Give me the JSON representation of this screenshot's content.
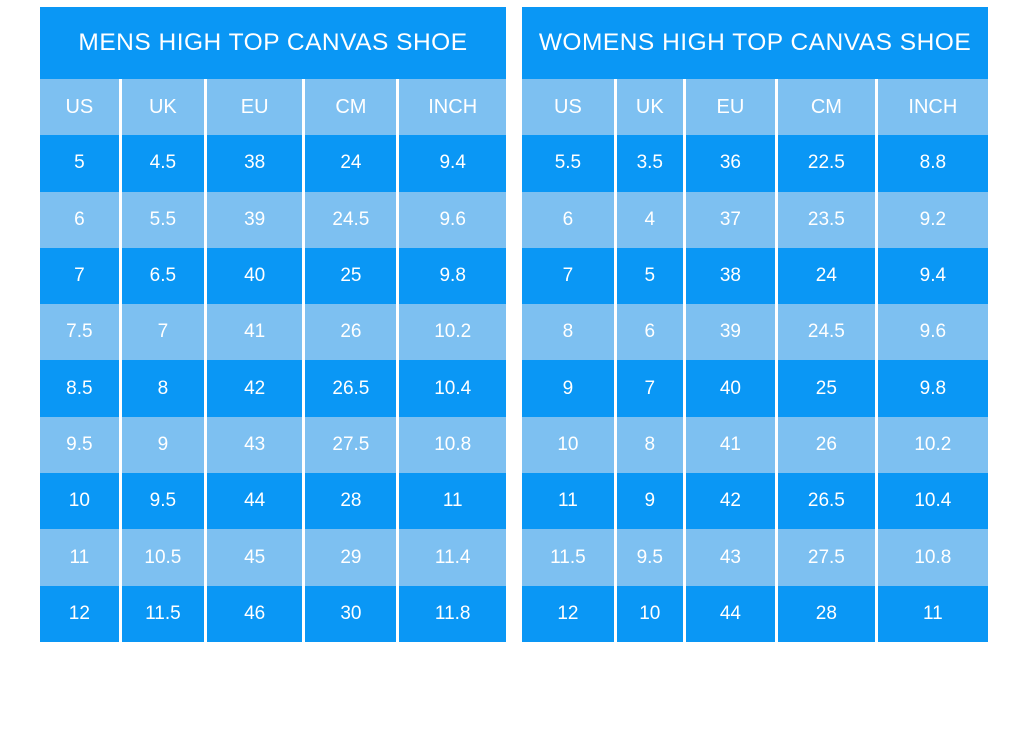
{
  "chart_data": [
    {
      "type": "table",
      "title": "MENS HIGH TOP CANVAS SHOE",
      "columns": [
        "US",
        "UK",
        "EU",
        "CM",
        "INCH"
      ],
      "rows": [
        [
          "5",
          "4.5",
          "38",
          "24",
          "9.4"
        ],
        [
          "6",
          "5.5",
          "39",
          "24.5",
          "9.6"
        ],
        [
          "7",
          "6.5",
          "40",
          "25",
          "9.8"
        ],
        [
          "7.5",
          "7",
          "41",
          "26",
          "10.2"
        ],
        [
          "8.5",
          "8",
          "42",
          "26.5",
          "10.4"
        ],
        [
          "9.5",
          "9",
          "43",
          "27.5",
          "10.8"
        ],
        [
          "10",
          "9.5",
          "44",
          "28",
          "11"
        ],
        [
          "11",
          "10.5",
          "45",
          "29",
          "11.4"
        ],
        [
          "12",
          "11.5",
          "46",
          "30",
          "11.8"
        ]
      ]
    },
    {
      "type": "table",
      "title": "WOMENS HIGH TOP CANVAS SHOE",
      "columns": [
        "US",
        "UK",
        "EU",
        "CM",
        "INCH"
      ],
      "rows": [
        [
          "5.5",
          "3.5",
          "36",
          "22.5",
          "8.8"
        ],
        [
          "6",
          "4",
          "37",
          "23.5",
          "9.2"
        ],
        [
          "7",
          "5",
          "38",
          "24",
          "9.4"
        ],
        [
          "8",
          "6",
          "39",
          "24.5",
          "9.6"
        ],
        [
          "9",
          "7",
          "40",
          "25",
          "9.8"
        ],
        [
          "10",
          "8",
          "41",
          "26",
          "10.2"
        ],
        [
          "11",
          "9",
          "42",
          "26.5",
          "10.4"
        ],
        [
          "11.5",
          "9.5",
          "43",
          "27.5",
          "10.8"
        ],
        [
          "12",
          "10",
          "44",
          "28",
          "11"
        ]
      ]
    }
  ],
  "colors": {
    "row_dark": "#0A97F5",
    "row_light": "#7DC0F1",
    "separator": "#FFFFFF",
    "text": "#FFFFFF",
    "background": "#FFFFFF"
  }
}
